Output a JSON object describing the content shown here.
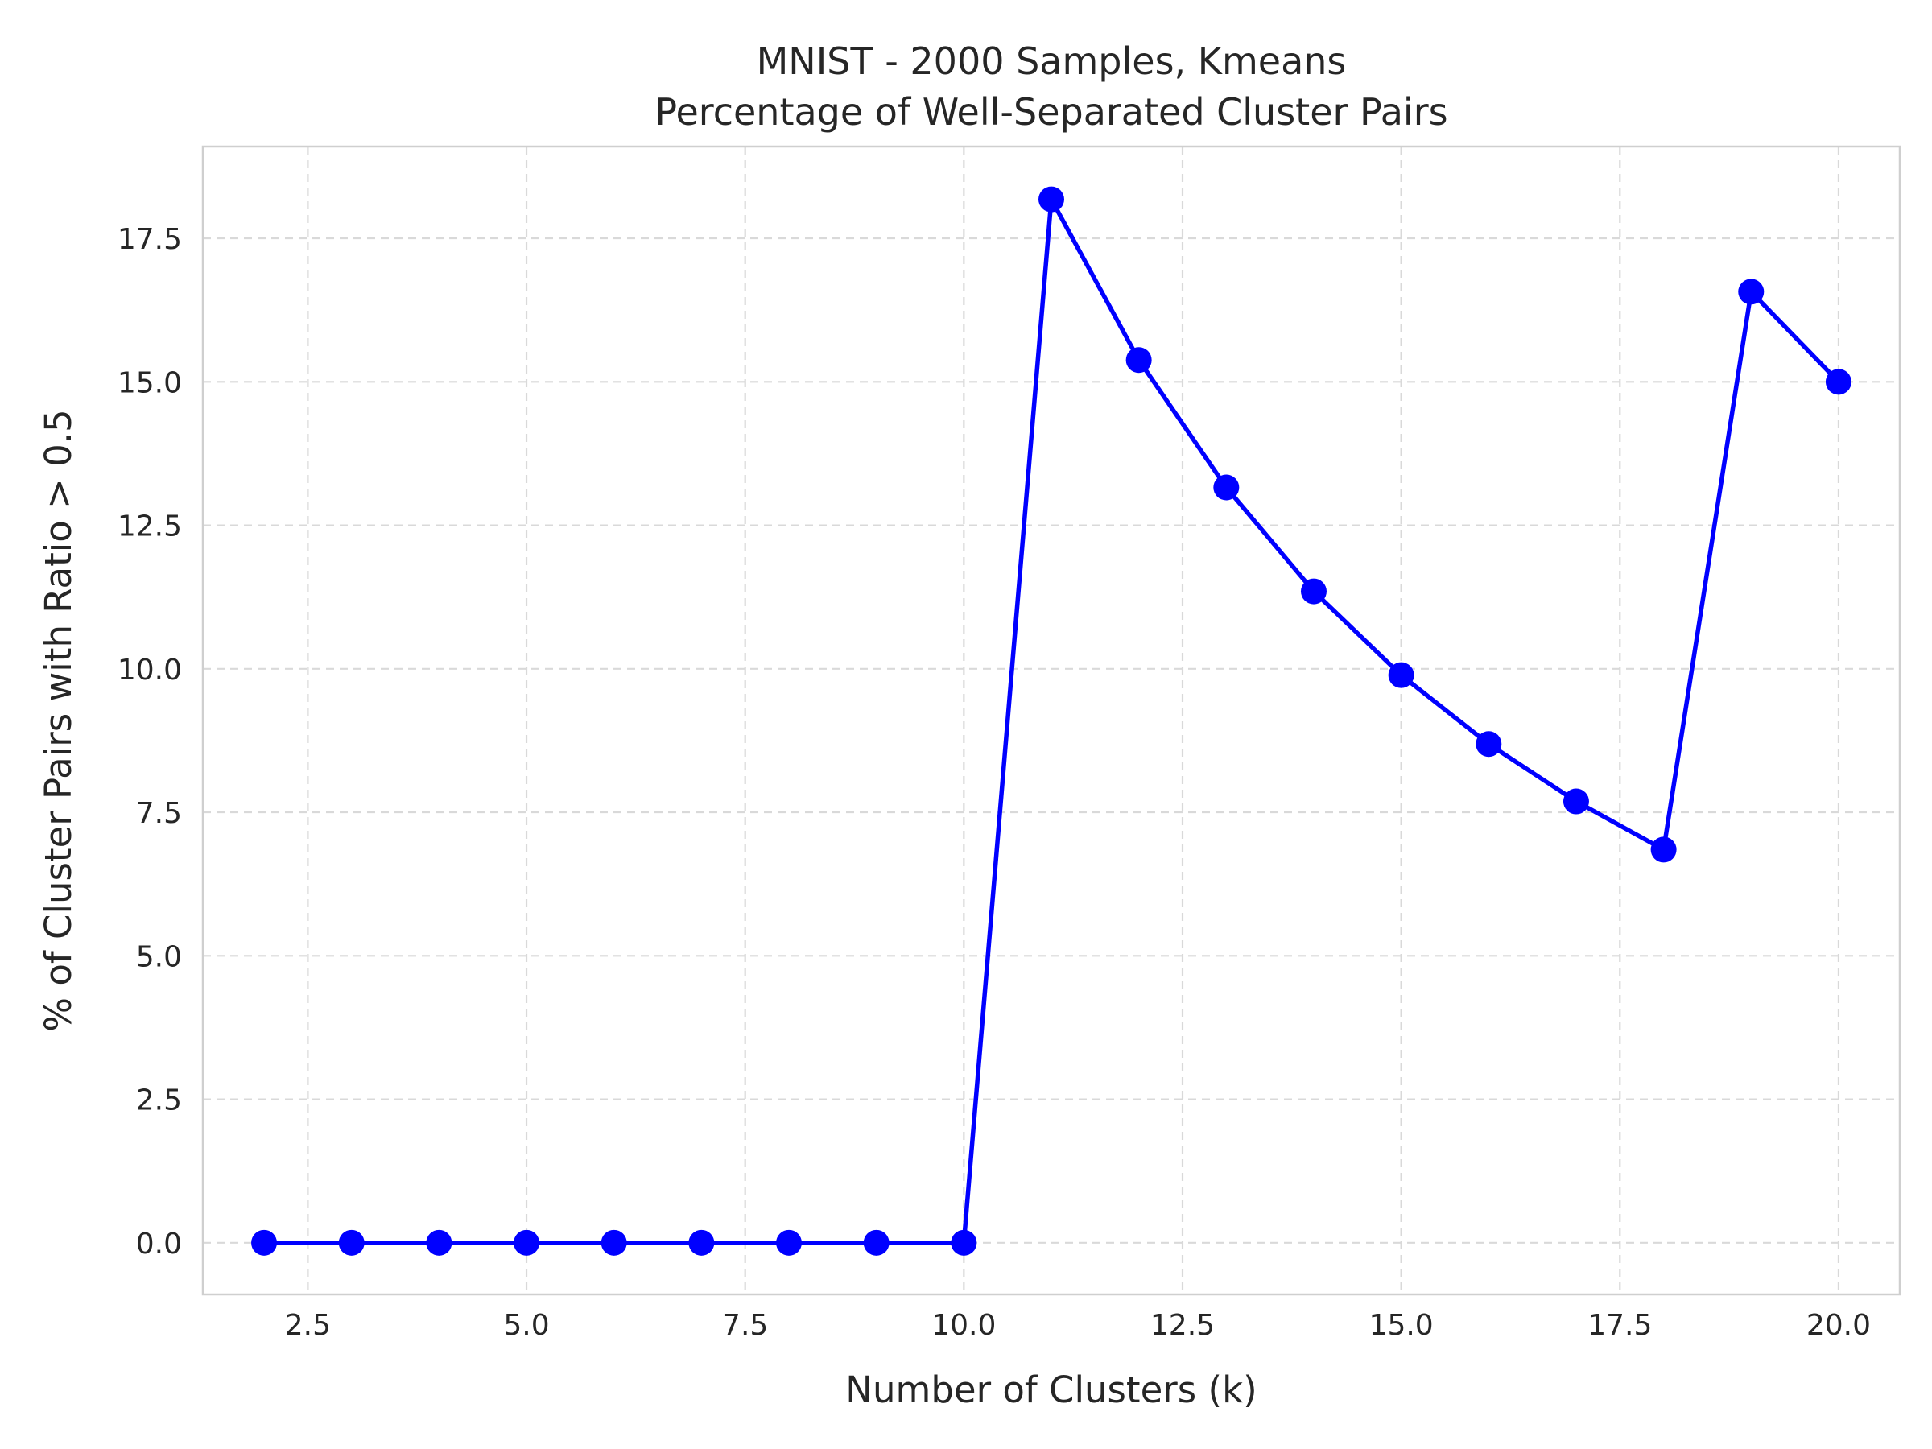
{
  "chart_data": {
    "type": "line",
    "title": "MNIST - 2000 Samples, Kmeans",
    "subtitle": "Percentage of Well-Separated Cluster Pairs",
    "xlabel": "Number of Clusters (k)",
    "ylabel": "% of Cluster Pairs with Ratio > 0.5",
    "xlim": [
      1.3,
      20.7
    ],
    "ylim": [
      -0.9,
      19.1
    ],
    "xticks": [
      2.5,
      5.0,
      7.5,
      10.0,
      12.5,
      15.0,
      17.5,
      20.0
    ],
    "xtick_labels": [
      "2.5",
      "5.0",
      "7.5",
      "10.0",
      "12.5",
      "15.0",
      "17.5",
      "20.0"
    ],
    "yticks": [
      0.0,
      2.5,
      5.0,
      7.5,
      10.0,
      12.5,
      15.0,
      17.5
    ],
    "ytick_labels": [
      "0.0",
      "2.5",
      "5.0",
      "7.5",
      "10.0",
      "12.5",
      "15.0",
      "17.5"
    ],
    "grid": true,
    "series": [
      {
        "color": "#0000ff",
        "marker": "circle",
        "x": [
          2,
          3,
          4,
          5,
          6,
          7,
          8,
          9,
          10,
          11,
          12,
          13,
          14,
          15,
          16,
          17,
          18,
          19,
          20
        ],
        "y": [
          0.0,
          0.0,
          0.0,
          0.0,
          0.0,
          0.0,
          0.0,
          0.0,
          0.0,
          18.18,
          15.38,
          13.16,
          11.35,
          9.89,
          8.69,
          7.69,
          6.85,
          16.57,
          15.0
        ]
      }
    ]
  }
}
